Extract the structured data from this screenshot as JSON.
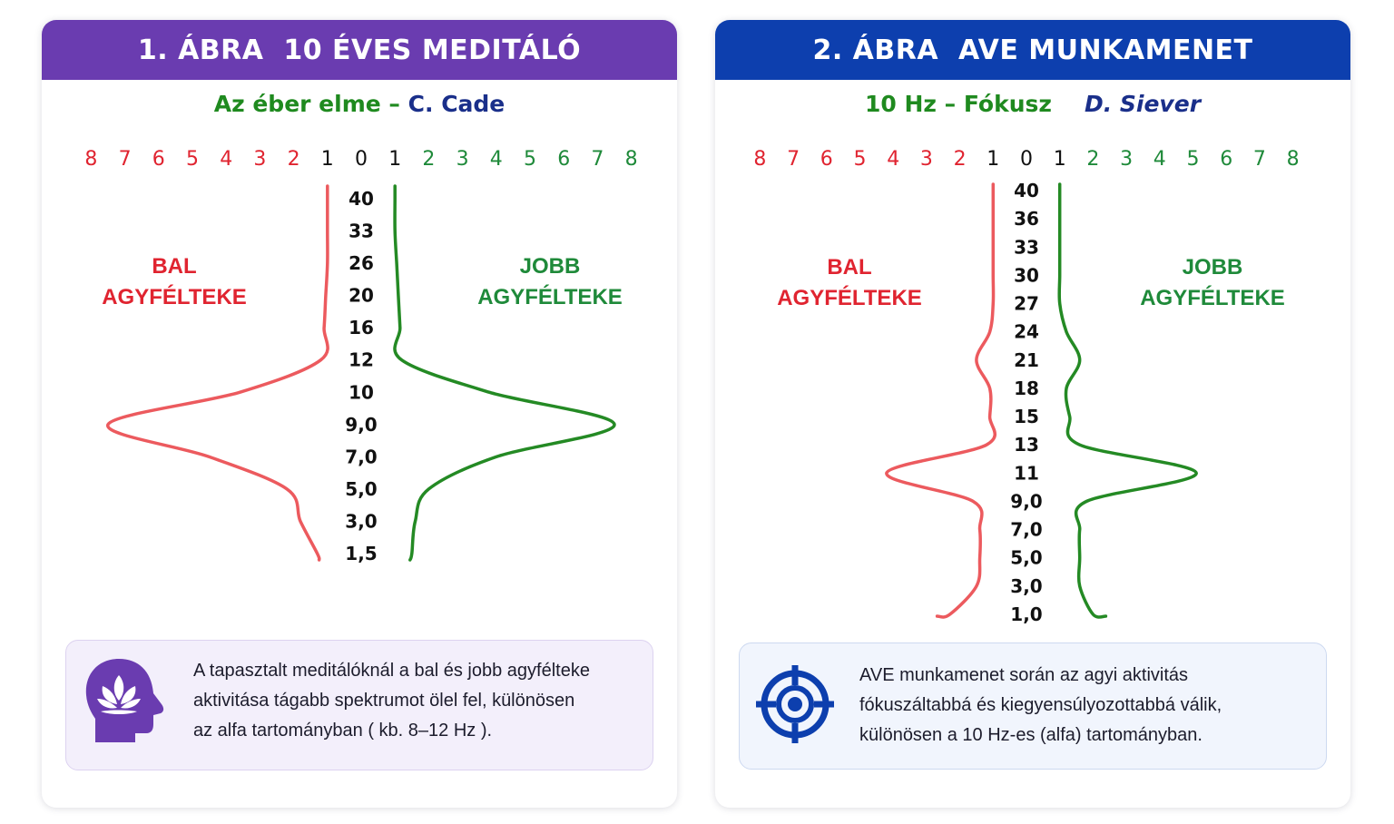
{
  "colors": {
    "left_curve": "#ec5a5e",
    "right_curve": "#248a24",
    "left_scale": "#e02430",
    "right_scale": "#1f8a3a",
    "center_scale": "#111111",
    "header_1": "#6a3cb0",
    "header_2": "#0d3fae",
    "subtitle_green": "#1f8a1f",
    "subtitle_navy": "#1a2f8a"
  },
  "panels": [
    {
      "header": "1. ÁBRA  10 ÉVES MEDITÁLÓ",
      "subtitle_main": "Az éber elme –",
      "subtitle_author": "C. Cade",
      "scale_left": [
        "8",
        "7",
        "6",
        "5",
        "4",
        "3",
        "2"
      ],
      "scale_center": [
        "1",
        "0",
        "1"
      ],
      "scale_right": [
        "2",
        "3",
        "4",
        "5",
        "6",
        "7",
        "8"
      ],
      "frequencies": [
        "40",
        "33",
        "26",
        "20",
        "16",
        "12",
        "10",
        "9,0",
        "7,0",
        "5,0",
        "3,0",
        "1,5"
      ],
      "left_label": [
        "BAL",
        "AGYFÉLTEKE"
      ],
      "right_label": [
        "JOBB",
        "AGYFÉLTEKE"
      ],
      "left_amplitude": [
        1.0,
        1.0,
        1.0,
        1.05,
        1.1,
        1.2,
        3.6,
        7.5,
        4.5,
        2.2,
        1.8,
        1.3
      ],
      "right_amplitude": [
        1.0,
        1.0,
        1.05,
        1.1,
        1.15,
        1.2,
        3.8,
        7.5,
        4.0,
        2.0,
        1.6,
        1.5
      ],
      "info_icon": "lotus-head-icon",
      "info_lines": [
        "A tapasztalt meditálóknál a bal és jobb agyfélteke",
        "aktivitása tágabb spektrumot ölel fel, különösen",
        "az alfa tartományban ( kb. 8–12 Hz )."
      ]
    },
    {
      "header": "2. ÁBRA  AVE MUNKAMENET",
      "subtitle_main": "10 Hz – Fókusz",
      "subtitle_author": "D. Siever",
      "scale_left": [
        "8",
        "7",
        "6",
        "5",
        "4",
        "3",
        "2"
      ],
      "scale_center": [
        "1",
        "0",
        "1"
      ],
      "scale_right": [
        "2",
        "3",
        "4",
        "5",
        "6",
        "7",
        "8"
      ],
      "frequencies": [
        "40",
        "36",
        "33",
        "30",
        "27",
        "24",
        "21",
        "18",
        "15",
        "13",
        "11",
        "9,0",
        "7,0",
        "5,0",
        "3,0",
        "1,0"
      ],
      "left_label": [
        "BAL",
        "AGYFÉLTEKE"
      ],
      "right_label": [
        "JOBB",
        "AGYFÉLTEKE"
      ],
      "left_amplitude": [
        1.0,
        1.0,
        1.0,
        1.0,
        1.0,
        1.1,
        1.5,
        1.1,
        1.1,
        1.2,
        4.2,
        1.6,
        1.4,
        1.4,
        1.5,
        2.3
      ],
      "right_amplitude": [
        1.0,
        1.0,
        1.0,
        1.0,
        1.0,
        1.2,
        1.6,
        1.2,
        1.3,
        1.6,
        5.1,
        1.8,
        1.6,
        1.6,
        1.6,
        2.0
      ],
      "info_icon": "target-icon",
      "info_lines": [
        "AVE munkamenet során az agyi aktivitás",
        "fókuszáltabbá és kiegyensúlyozottabbá válik,",
        "különösen a 10 Hz-es (alfa) tartományban."
      ]
    }
  ]
}
